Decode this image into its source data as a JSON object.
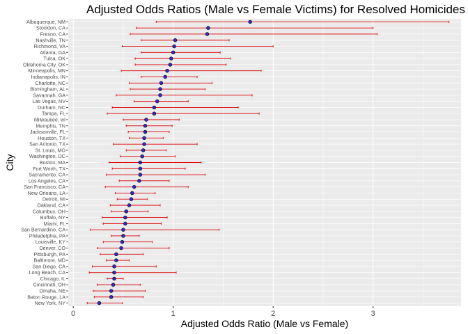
{
  "chart_data": {
    "type": "scatter",
    "title": "Adjusted Odds Ratios (Male vs Female Victims) for Resolved Homicides",
    "xlabel": "Adjusted Odds Ratio (Male vs Female)",
    "ylabel": "City",
    "xlim": [
      -0.05,
      3.88
    ],
    "x_ticks": [
      0,
      1,
      2,
      3
    ],
    "grid": true,
    "point_color": "#2b2bd6",
    "point_outline": "#000000",
    "errorbar_color": "#e00000",
    "panel_color": "#ebebeb",
    "grid_color": "#ffffff",
    "cities": [
      "Albuquerque, NM",
      "Stockton, CA",
      "Fresno, CA",
      "Nashville, TN",
      "Richmond, VA",
      "Atlanta, GA",
      "Tulsa, OK",
      "Oklahoma City, OK",
      "Minneapolis, MN",
      "Indianapolis, IN",
      "Charlotte, NC",
      "Birmingham, AL",
      "Savannah, GA",
      "Las Vegas, NV",
      "Durham, NC",
      "Tampa, FL",
      "Milwaukee, wI",
      "Memphis, TN",
      "Jacksonville, FL",
      "Houston, TX",
      "San Antonio, TX",
      "St. Louis, MO",
      "Washington, DC",
      "Boston, MA",
      "Fort Worth, TX",
      "Sacramento, CA",
      "Los Angeles, CA",
      "San Francisco, CA",
      "New Orleans, LA",
      "Detroit, MI",
      "Oakland, CA",
      "Columbus, OH",
      "Buffalo, NY",
      "Miami, FL",
      "San Bernardino, CA",
      "Philadelphia, PA",
      "Louisville, KY",
      "Denver, CO",
      "Pittsburgh, PA",
      "Baltimore, MD",
      "San Diego, CA",
      "Long Beach, CA",
      "Chicago, IL",
      "Cincinnati, OH",
      "Omaha, NE",
      "Baton Rouge, LA",
      "New York, NY"
    ],
    "odds_ratio": [
      1.77,
      1.35,
      1.34,
      1.02,
      1.01,
      1.0,
      0.98,
      0.97,
      0.94,
      0.92,
      0.88,
      0.87,
      0.87,
      0.84,
      0.81,
      0.81,
      0.73,
      0.72,
      0.72,
      0.71,
      0.71,
      0.7,
      0.69,
      0.67,
      0.67,
      0.67,
      0.66,
      0.61,
      0.59,
      0.58,
      0.56,
      0.53,
      0.52,
      0.52,
      0.5,
      0.5,
      0.49,
      0.48,
      0.43,
      0.43,
      0.41,
      0.41,
      0.41,
      0.4,
      0.38,
      0.38,
      0.26
    ],
    "ci_low": [
      0.83,
      0.63,
      0.57,
      0.68,
      0.49,
      0.68,
      0.62,
      0.62,
      0.48,
      0.68,
      0.56,
      0.57,
      0.43,
      0.61,
      0.39,
      0.34,
      0.5,
      0.53,
      0.55,
      0.56,
      0.4,
      0.53,
      0.47,
      0.36,
      0.39,
      0.33,
      0.46,
      0.32,
      0.42,
      0.44,
      0.37,
      0.38,
      0.29,
      0.3,
      0.17,
      0.38,
      0.3,
      0.24,
      0.27,
      0.33,
      0.19,
      0.16,
      0.34,
      0.24,
      0.2,
      0.21,
      0.14
    ],
    "ci_high": [
      3.76,
      3.0,
      3.04,
      1.56,
      2.0,
      1.47,
      1.57,
      1.53,
      1.88,
      1.24,
      1.39,
      1.32,
      1.79,
      1.15,
      1.65,
      1.86,
      1.06,
      0.99,
      0.96,
      0.9,
      1.24,
      0.93,
      1.02,
      1.28,
      1.12,
      1.32,
      0.96,
      1.15,
      0.82,
      0.74,
      0.87,
      0.75,
      0.94,
      0.88,
      1.46,
      0.66,
      0.79,
      0.96,
      0.7,
      0.56,
      0.83,
      1.03,
      0.5,
      0.67,
      0.72,
      0.7,
      0.49
    ]
  }
}
